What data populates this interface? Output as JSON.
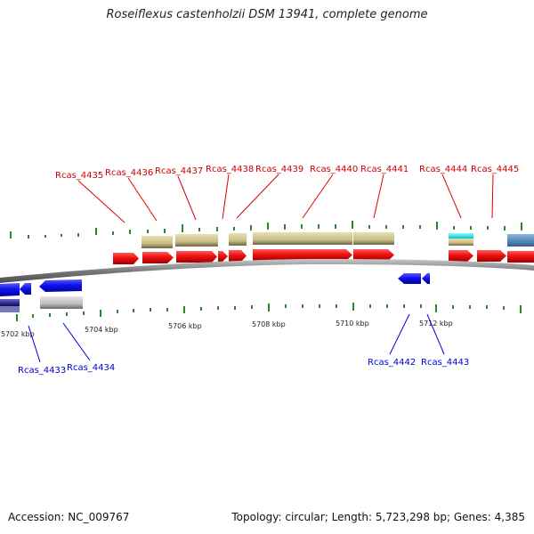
{
  "title": "Roseiflexus castenholzii DSM 13941, complete genome",
  "footer": {
    "accession": "Accession: NC_009767",
    "summary": "Topology: circular; Length: 5,723,298 bp; Genes: 4,385"
  },
  "colors": {
    "forward_cds": "#ee1111",
    "reverse_cds": "#1111ee",
    "khaki_track": "#c8bf88",
    "cyan_feature": "#22dddd",
    "steelblue_feature": "#4a86c0",
    "backbone": "#888888",
    "label_top": "#cc0000",
    "label_bottom": "#0000cc",
    "gc_tick": "#2a8a2a"
  },
  "top_labels": [
    "Rcas_4435",
    "Rcas_4436",
    "Rcas_4437",
    "Rcas_4438",
    "Rcas_4439",
    "Rcas_4440",
    "Rcas_4441",
    "Rcas_4444",
    "Rcas_4445"
  ],
  "bottom_labels": [
    "Rcas_4433",
    "Rcas_4434",
    "Rcas_4442",
    "Rcas_4443"
  ],
  "kbp_labels": [
    "5702 kbp",
    "5704 kbp",
    "5706 kbp",
    "5708 kbp",
    "5710 kbp",
    "5712 kbp"
  ]
}
